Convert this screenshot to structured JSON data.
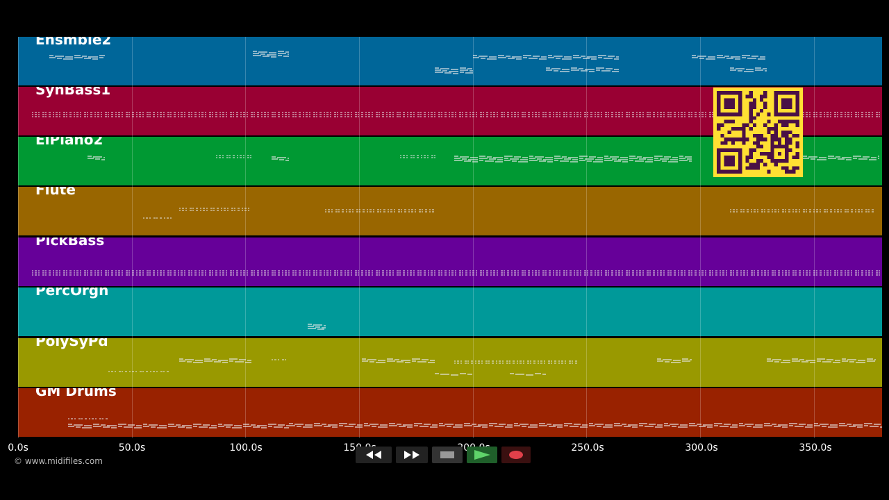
{
  "tracks": [
    {
      "name": "Ensmble2",
      "color": "#006699"
    },
    {
      "name": "SynBass1",
      "color": "#990033"
    },
    {
      "name": "ElPiano2",
      "color": "#009933"
    },
    {
      "name": "Flute",
      "color": "#996600"
    },
    {
      "name": "PickBass",
      "color": "#660099"
    },
    {
      "name": "PercOrgn",
      "color": "#009999"
    },
    {
      "name": "PolySyPd",
      "color": "#999900"
    },
    {
      "name": "GM Drums",
      "color": "#992200"
    }
  ],
  "timeline": {
    "ticks": [
      "0.0s",
      "50.0s",
      "100.0s",
      "150.0s",
      "200.0s",
      "250.0s",
      "300.0s",
      "350.0s"
    ],
    "tick_seconds": [
      0,
      50,
      100,
      150,
      200,
      250,
      300,
      350
    ],
    "duration_seconds": 380
  },
  "footer": {
    "copyright": "© www.midifiles.com"
  },
  "transport": {
    "buttons": [
      {
        "name": "rewind-button",
        "icon": "rewind-icon",
        "color": "#222222"
      },
      {
        "name": "fast-forward-button",
        "icon": "fast-forward-icon",
        "color": "#222222"
      },
      {
        "name": "stop-button",
        "icon": "stop-icon",
        "color": "#333333"
      },
      {
        "name": "play-button",
        "icon": "play-icon",
        "color": "#1f5f2a"
      },
      {
        "name": "record-button",
        "icon": "record-icon",
        "color": "#3a1010"
      }
    ]
  },
  "qr_code": {
    "icon": "qr-code-icon",
    "color": "#ffe033"
  }
}
